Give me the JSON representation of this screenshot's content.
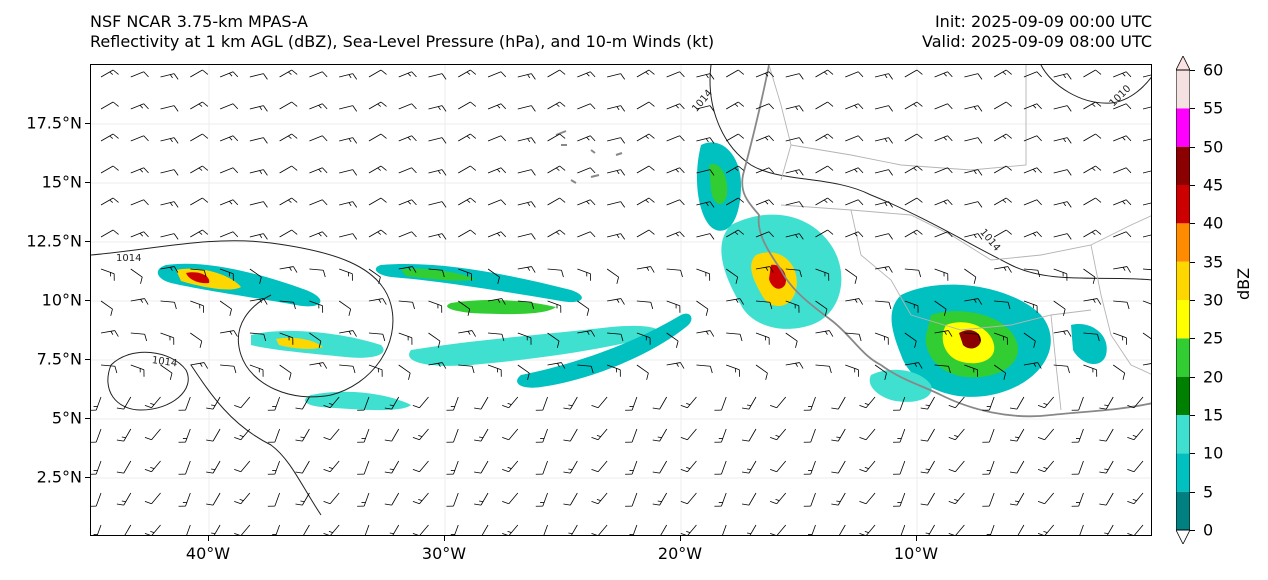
{
  "title": {
    "left_line1": "NSF NCAR 3.75-km MPAS-A",
    "left_line2": "Reflectivity at 1 km AGL (dBZ), Sea-Level Pressure (hPa), and 10-m Winds (kt)",
    "right_line1": "Init: 2025-09-09 00:00 UTC",
    "right_line2": "Valid: 2025-09-09 08:00 UTC"
  },
  "map": {
    "lon_range": [
      -45,
      0
    ],
    "lat_range": [
      0,
      20
    ],
    "lat_ticks": [
      {
        "value": 17.5,
        "label": "17.5°N"
      },
      {
        "value": 15,
        "label": "15°N"
      },
      {
        "value": 12.5,
        "label": "12.5°N"
      },
      {
        "value": 10,
        "label": "10°N"
      },
      {
        "value": 7.5,
        "label": "7.5°N"
      },
      {
        "value": 5,
        "label": "5°N"
      },
      {
        "value": 2.5,
        "label": "2.5°N"
      }
    ],
    "lon_ticks": [
      {
        "value": -40,
        "label": "40°W"
      },
      {
        "value": -30,
        "label": "30°W"
      },
      {
        "value": -20,
        "label": "20°W"
      },
      {
        "value": -10,
        "label": "10°W"
      }
    ],
    "isobar_labels": [
      {
        "text": "1014",
        "lon": -43.4,
        "lat": 11.7,
        "angle": 0
      },
      {
        "text": "1014",
        "lon": -41.9,
        "lat": 7.3,
        "angle": 8
      },
      {
        "text": "1014",
        "lon": -19.0,
        "lat": 18.4,
        "angle": -50
      },
      {
        "text": "1014",
        "lon": -7.0,
        "lat": 12.5,
        "angle": 50
      },
      {
        "text": "1010",
        "lon": -1.3,
        "lat": 18.6,
        "angle": -45
      }
    ],
    "colors": {
      "coastline": "#888888",
      "borders": "#b4b4b4",
      "isobars": "#222222",
      "gridlines": "#eeeeee",
      "barbs": "#000000"
    }
  },
  "colorbar": {
    "label": "dBZ",
    "levels": [
      {
        "value": 0,
        "label": "0"
      },
      {
        "value": 5,
        "label": "5"
      },
      {
        "value": 10,
        "label": "10"
      },
      {
        "value": 15,
        "label": "15"
      },
      {
        "value": 20,
        "label": "20"
      },
      {
        "value": 25,
        "label": "25"
      },
      {
        "value": 30,
        "label": "30"
      },
      {
        "value": 35,
        "label": "35"
      },
      {
        "value": 40,
        "label": "40"
      },
      {
        "value": 45,
        "label": "45"
      },
      {
        "value": 50,
        "label": "50"
      },
      {
        "value": 55,
        "label": "55"
      },
      {
        "value": 60,
        "label": "60"
      }
    ],
    "colors": [
      "#008080",
      "#00c0c0",
      "#40e0d0",
      "#008000",
      "#32cd32",
      "#ffff00",
      "#ffd700",
      "#ff8c00",
      "#cc0000",
      "#8b0000",
      "#ff00ff",
      "#f5e1e1"
    ],
    "under_color": "#ffffff",
    "over_color": "#fde2e2"
  }
}
